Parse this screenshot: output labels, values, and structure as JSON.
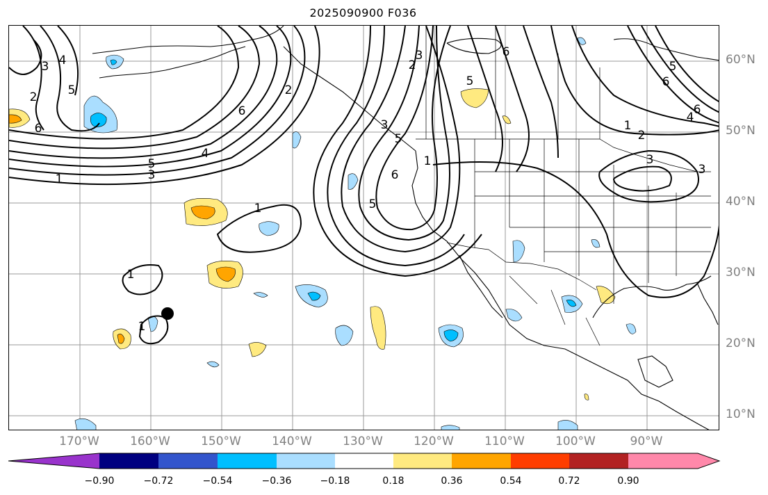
{
  "title": "2025090900 F036",
  "lon_labels": [
    "170°W",
    "160°W",
    "150°W",
    "140°W",
    "130°W",
    "120°W",
    "110°W",
    "100°W",
    "90°W"
  ],
  "lat_labels": [
    "60°N",
    "50°N",
    "40°N",
    "30°N",
    "20°N",
    "10°N"
  ],
  "contour_labels": [
    "3",
    "4",
    "2",
    "5",
    "6",
    "6",
    "4",
    "5",
    "3",
    "1",
    "1",
    "2",
    "3",
    "5",
    "6",
    "3",
    "2",
    "6",
    "5",
    "5",
    "6",
    "4",
    "1",
    "2",
    "3",
    "5",
    "6",
    "3",
    "1",
    "1",
    "1"
  ],
  "colorbar": {
    "ticks": [
      "−0.90",
      "−0.72",
      "−0.54",
      "−0.36",
      "−0.18",
      "0.18",
      "0.36",
      "0.54",
      "0.72",
      "0.90"
    ],
    "colors": [
      "#9933cc",
      "#000080",
      "#3355cc",
      "#00bfff",
      "#aadeff",
      "#ffffff",
      "#ffea80",
      "#ffa500",
      "#ff3d00",
      "#b22222",
      "#ff88aa"
    ]
  },
  "storm_marker": "filled-circle"
}
